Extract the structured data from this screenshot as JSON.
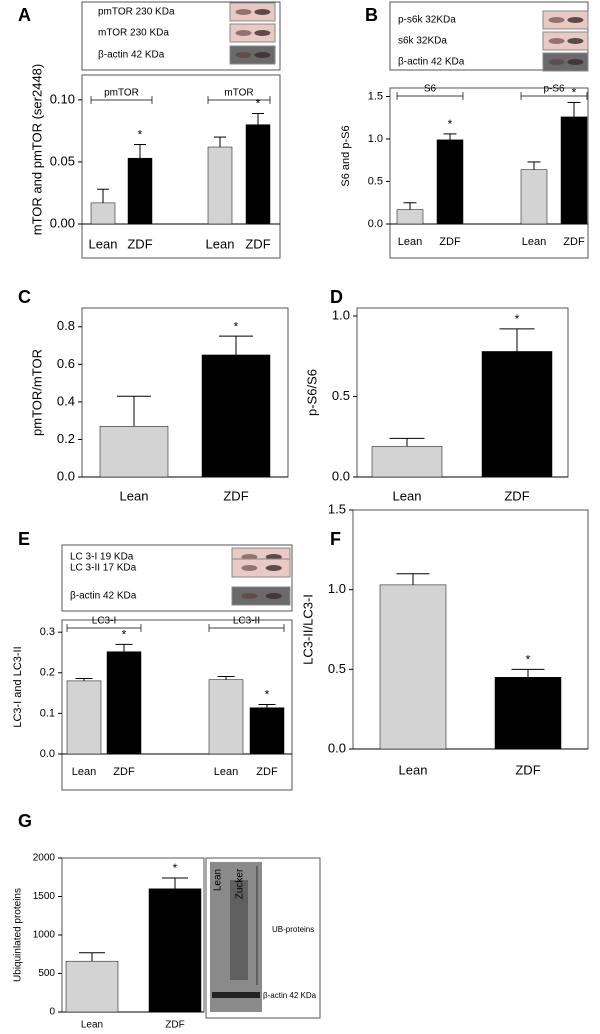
{
  "chart_data": [
    {
      "type": "bar",
      "panel": "A",
      "blot_labels": [
        "pmTOR 230 KDa",
        "mTOR 230 KDa",
        "β-actin  42 KDa"
      ],
      "ylabel": "mTOR and pmTOR (ser2448)",
      "categories": [
        "Lean",
        "ZDF",
        "Lean",
        "ZDF"
      ],
      "groups": [
        "pmTOR",
        "mTOR"
      ],
      "values": [
        0.017,
        0.053,
        0.062,
        0.08
      ],
      "errors": [
        0.011,
        0.011,
        0.008,
        0.009
      ],
      "colors": [
        "#d3d3d3",
        "#000000",
        "#d3d3d3",
        "#000000"
      ],
      "markers": [
        null,
        "*",
        null,
        "*"
      ],
      "ylim": [
        0,
        0.12
      ],
      "yticks": [
        {
          "value": 0,
          "label": "0.00"
        },
        {
          "value": 0.05,
          "label": "0.05"
        },
        {
          "value": 0.1,
          "label": "0.10"
        }
      ]
    },
    {
      "type": "bar",
      "panel": "B",
      "blot_labels": [
        "p-s6k 32KDa",
        "s6k 32KDa",
        "β-actin  42 KDa"
      ],
      "ylabel": "S6 and p-S6",
      "categories": [
        "Lean",
        "ZDF",
        "Lean",
        "ZDF"
      ],
      "groups": [
        "S6",
        "p-S6"
      ],
      "values": [
        0.17,
        0.99,
        0.64,
        1.26
      ],
      "errors": [
        0.08,
        0.07,
        0.09,
        0.17
      ],
      "colors": [
        "#d3d3d3",
        "#000000",
        "#d3d3d3",
        "#000000"
      ],
      "markers": [
        null,
        "*",
        null,
        "*"
      ],
      "ylim": [
        0,
        1.6
      ],
      "yticks": [
        {
          "value": 0,
          "label": "0.0"
        },
        0.5,
        {
          "value": 1,
          "label": "1.0"
        },
        1.5
      ]
    },
    {
      "type": "bar",
      "panel": "C",
      "ylabel": "pmTOR/mTOR",
      "categories": [
        "Lean",
        "ZDF"
      ],
      "values": [
        0.27,
        0.65
      ],
      "errors": [
        0.16,
        0.1
      ],
      "colors": [
        "#d3d3d3",
        "#000000"
      ],
      "markers": [
        null,
        "*"
      ],
      "ylim": [
        0,
        0.9
      ],
      "yticks": [
        {
          "value": 0,
          "label": "0.0"
        },
        0.2,
        0.4,
        0.6,
        0.8
      ]
    },
    {
      "type": "bar",
      "panel": "D",
      "ylabel": "p-S6/S6",
      "categories": [
        "Lean",
        "ZDF"
      ],
      "values": [
        0.19,
        0.78
      ],
      "errors": [
        0.05,
        0.14
      ],
      "colors": [
        "#d3d3d3",
        "#000000"
      ],
      "markers": [
        null,
        "*"
      ],
      "ylim": [
        0,
        1.05
      ],
      "yticks": [
        {
          "value": 0,
          "label": "0.0"
        },
        0.5,
        {
          "value": 1,
          "label": "1.0"
        }
      ]
    },
    {
      "type": "bar",
      "panel": "E",
      "blot_labels": [
        "LC 3-I 19 KDa",
        "LC 3-II 17 KDa",
        "β-actin   42 KDa"
      ],
      "ylabel": "LC3-I and LC3-II",
      "categories": [
        "Lean",
        "ZDF",
        "Lean",
        "ZDF"
      ],
      "groups": [
        "LC3-I",
        "LC3-II"
      ],
      "values": [
        0.18,
        0.252,
        0.183,
        0.114
      ],
      "errors": [
        0.006,
        0.018,
        0.008,
        0.008
      ],
      "colors": [
        "#d3d3d3",
        "#000000",
        "#d3d3d3",
        "#000000"
      ],
      "markers": [
        null,
        "*",
        null,
        "*"
      ],
      "ylim": [
        0,
        0.33
      ],
      "yticks": [
        {
          "value": 0,
          "label": "0.0"
        },
        0.1,
        0.2,
        0.3
      ]
    },
    {
      "type": "bar",
      "panel": "F",
      "ylabel": "LC3-II/LC3-I",
      "categories": [
        "Lean",
        "ZDF"
      ],
      "values": [
        1.03,
        0.45
      ],
      "errors": [
        0.07,
        0.05
      ],
      "colors": [
        "#d3d3d3",
        "#000000"
      ],
      "markers": [
        null,
        "*"
      ],
      "ylim": [
        0,
        1.5
      ],
      "yticks": [
        {
          "value": 0,
          "label": "0.0"
        },
        0.5,
        {
          "value": 1,
          "label": "1.0"
        },
        1.5
      ]
    },
    {
      "type": "bar",
      "panel": "G",
      "blot_labels": [
        "Lean",
        "Zucker",
        "UB-proteins",
        "β-actin 42 KDa"
      ],
      "ylabel": "Ubiquinlated proteins",
      "categories": [
        "Lean",
        "ZDF"
      ],
      "values": [
        660,
        1600
      ],
      "errors": [
        110,
        140
      ],
      "colors": [
        "#d3d3d3",
        "#000000"
      ],
      "markers": [
        null,
        "*"
      ],
      "ylim": [
        0,
        2000
      ],
      "yticks": [
        0,
        500,
        1000,
        1500,
        2000
      ]
    }
  ]
}
